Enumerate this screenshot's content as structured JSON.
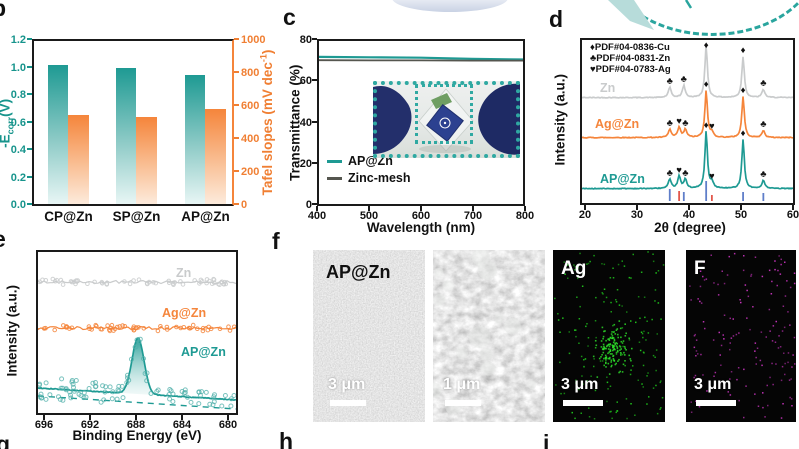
{
  "colors": {
    "teal": "#1E9A93",
    "teal_light": "#E8F6F5",
    "teal_dot": "#2FA9A2",
    "orange": "#F5853B",
    "orange_light": "#FDEBDC",
    "gray_curve": "#C9CBCC",
    "dark_line": "#55564F",
    "ref_blue": "#5F7EC9",
    "ref_red": "#E2574B",
    "eds_green": "#1FC41C",
    "eds_magenta": "#C433BA",
    "axis_teal_text": "#17948C",
    "axis_orange_text": "#F07F33"
  },
  "panel_labels": {
    "b": "b",
    "c": "c",
    "d": "d",
    "e": "e",
    "f": "f",
    "g": "g",
    "h": "h",
    "i": "i"
  },
  "chart_data": [
    {
      "panel": "b",
      "type": "bar",
      "categories": [
        "CP@Zn",
        "SP@Zn",
        "AP@Zn"
      ],
      "series": [
        {
          "name": "-Ecorr (V)",
          "axis": "left",
          "color_key": "teal",
          "values": [
            1.02,
            1.0,
            0.95
          ]
        },
        {
          "name": "Tafel slopes (mV dec-1)",
          "axis": "right",
          "color_key": "orange",
          "values": [
            545,
            535,
            585
          ]
        }
      ],
      "y_left": {
        "title_pre": "-E",
        "title_sub": "corr",
        "title_post": "(V)",
        "ticks": [
          "0.0",
          "0.2",
          "0.4",
          "0.6",
          "0.8",
          "1.0",
          "1.2"
        ],
        "range": [
          0,
          1.2
        ]
      },
      "y_right": {
        "title_pre": "Tafel slopes (mV dec",
        "title_sup": "-1",
        "title_post": ")",
        "ticks": [
          "0",
          "200",
          "400",
          "600",
          "800",
          "1000"
        ],
        "range": [
          0,
          1000
        ]
      }
    },
    {
      "panel": "c",
      "type": "line",
      "xlabel": "Wavelength (nm)",
      "ylabel": "Transmittance (%)",
      "xticks": [
        "400",
        "500",
        "600",
        "700",
        "800"
      ],
      "yticks": [
        "0",
        "20",
        "40",
        "60",
        "80"
      ],
      "xlim": [
        400,
        800
      ],
      "ylim": [
        0,
        80
      ],
      "series": [
        {
          "name": "AP@Zn",
          "color_key": "teal",
          "x": [
            400,
            500,
            600,
            700,
            800
          ],
          "y": [
            72.2,
            72.0,
            71.8,
            71.2,
            70.9
          ]
        },
        {
          "name": "Zinc-mesh",
          "color_key": "dark_line",
          "x": [
            400,
            500,
            600,
            700,
            800
          ],
          "y": [
            70.6,
            70.5,
            70.5,
            70.4,
            70.4
          ]
        }
      ],
      "legend_position": "lower-left",
      "inset": "photograph"
    },
    {
      "panel": "d",
      "type": "line",
      "subtype": "XRD",
      "xlabel": "2θ (degree)",
      "ylabel": "Intensity (a.u.)",
      "xticks": [
        "20",
        "30",
        "40",
        "50",
        "60"
      ],
      "xlim": [
        20,
        60
      ],
      "legend": [
        {
          "symbol": "♦",
          "text": "PDF#04-0836-Cu"
        },
        {
          "symbol": "♣",
          "text": "PDF#04-0831-Zn"
        },
        {
          "symbol": "♥",
          "text": "PDF#04-0783-Ag"
        }
      ],
      "series": [
        {
          "name": "Zn",
          "color_key": "gray_curve",
          "baseline": 58,
          "peaks": [
            {
              "two_theta": 36.3,
              "h": 10,
              "marker": "♣"
            },
            {
              "two_theta": 39.0,
              "h": 12,
              "marker": "♣"
            },
            {
              "two_theta": 43.3,
              "h": 52,
              "marker": "♦"
            },
            {
              "two_theta": 50.4,
              "h": 41,
              "marker": "♦"
            },
            {
              "two_theta": 54.3,
              "h": 8,
              "marker": "♣"
            }
          ]
        },
        {
          "name": "Ag@Zn",
          "color_key": "orange",
          "baseline": 98,
          "peaks": [
            {
              "two_theta": 36.3,
              "h": 8,
              "marker": "♣"
            },
            {
              "two_theta": 38.1,
              "h": 10,
              "marker": "♥"
            },
            {
              "two_theta": 39.3,
              "h": 8,
              "marker": "♣"
            },
            {
              "two_theta": 43.3,
              "h": 47,
              "marker": "♦"
            },
            {
              "two_theta": 44.4,
              "h": 5,
              "marker": "♥"
            },
            {
              "two_theta": 50.4,
              "h": 41,
              "marker": "♦"
            },
            {
              "two_theta": 54.3,
              "h": 7,
              "marker": "♣"
            }
          ]
        },
        {
          "name": "AP@Zn",
          "color_key": "teal",
          "baseline": 149,
          "peaks": [
            {
              "two_theta": 36.3,
              "h": 9,
              "marker": "♣"
            },
            {
              "two_theta": 38.1,
              "h": 12,
              "marker": "♥"
            },
            {
              "two_theta": 39.3,
              "h": 9,
              "marker": "♣"
            },
            {
              "two_theta": 43.3,
              "h": 57,
              "marker": "♦"
            },
            {
              "two_theta": 44.4,
              "h": 6,
              "marker": "♥"
            },
            {
              "two_theta": 50.4,
              "h": 49,
              "marker": "♦"
            },
            {
              "two_theta": 54.3,
              "h": 8,
              "marker": "♣"
            }
          ]
        }
      ],
      "ref_sticks": {
        "blue": [
          {
            "two_theta": 36.3,
            "h": 12
          },
          {
            "two_theta": 39.0,
            "h": 9
          },
          {
            "two_theta": 43.3,
            "h": 20
          },
          {
            "two_theta": 50.4,
            "h": 9
          },
          {
            "two_theta": 54.3,
            "h": 8
          }
        ],
        "red": [
          {
            "two_theta": 38.1,
            "h": 10
          },
          {
            "two_theta": 44.4,
            "h": 6
          }
        ]
      }
    },
    {
      "panel": "e",
      "type": "line+scatter",
      "subtype": "XPS",
      "xlabel": "Binding Energy (eV)",
      "ylabel": "Intensity (a.u.)",
      "xticks": [
        "696",
        "692",
        "688",
        "684",
        "680"
      ],
      "x_axis_reversed": true,
      "xlim": [
        697,
        679
      ],
      "traces": [
        {
          "name": "Zn",
          "color_key": "gray_curve",
          "shape": "flat-noise"
        },
        {
          "name": "Ag@Zn",
          "color_key": "orange",
          "shape": "flat-noise"
        },
        {
          "name": "AP@Zn",
          "color_key": "teal",
          "shape": "peak",
          "peak_center_ev": 688
        }
      ]
    }
  ],
  "panel_f": {
    "images": [
      {
        "kind": "sem",
        "title": "AP@Zn",
        "scalebar": "3 μm"
      },
      {
        "kind": "sem",
        "title": "",
        "scalebar": "1 μm"
      },
      {
        "kind": "eds",
        "title": "Ag",
        "color_key": "eds_green",
        "scalebar": "3 μm"
      },
      {
        "kind": "eds",
        "title": "F",
        "color_key": "eds_magenta",
        "scalebar": "3 μm"
      }
    ]
  }
}
